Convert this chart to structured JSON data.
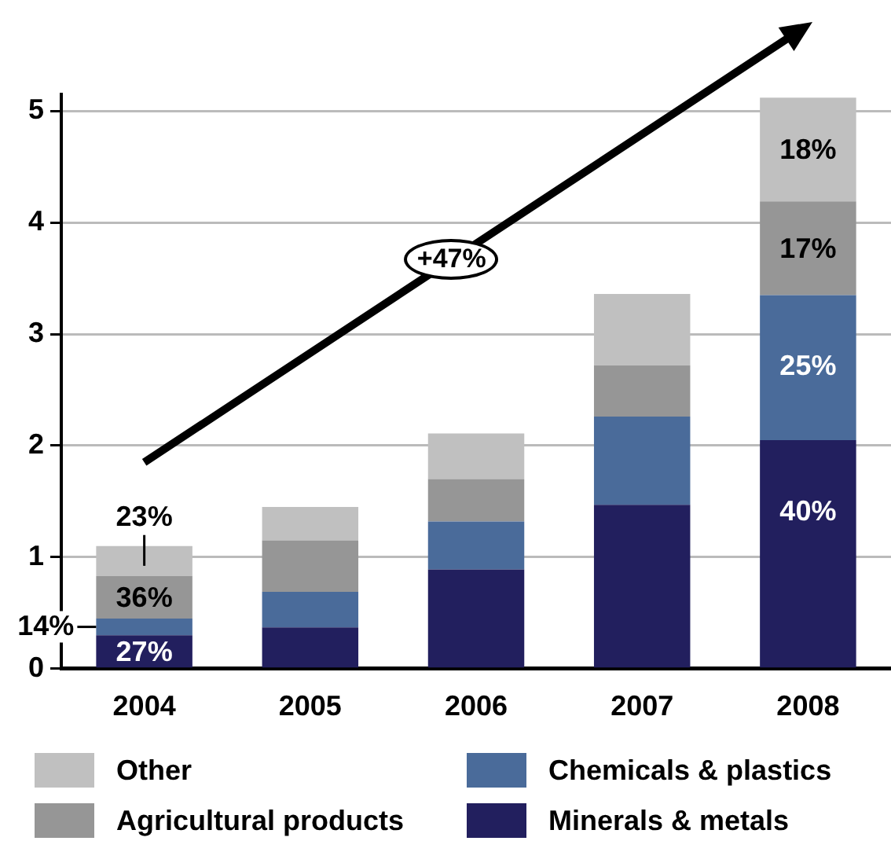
{
  "chart_data": {
    "type": "bar",
    "stacked": true,
    "categories": [
      "2004",
      "2005",
      "2006",
      "2007",
      "2008"
    ],
    "series": [
      {
        "name": "Minerals & metals",
        "color": "#221f5e",
        "values": [
          0.3,
          0.37,
          0.89,
          1.47,
          2.05
        ]
      },
      {
        "name": "Chemicals & plastics",
        "color": "#4a6b9a",
        "values": [
          0.15,
          0.32,
          0.43,
          0.79,
          1.3
        ]
      },
      {
        "name": "Agricultural products",
        "color": "#969696",
        "values": [
          0.38,
          0.46,
          0.38,
          0.46,
          0.84
        ]
      },
      {
        "name": "Other",
        "color": "#c0c0c0",
        "values": [
          0.27,
          0.3,
          0.41,
          0.64,
          0.93
        ]
      }
    ],
    "ylim": [
      0,
      5.15
    ],
    "yticks": [
      0,
      1,
      2,
      3,
      4,
      5
    ],
    "grid": "y",
    "legend": "bottom",
    "annotations": [
      "+47%",
      {
        "text": "27%",
        "x": "2004",
        "y": 0.3
      },
      {
        "text": "14%",
        "x": "2004",
        "y": 0.45
      },
      {
        "text": "36%",
        "x": "2004",
        "y": 0.83
      },
      {
        "text": "23%",
        "x": "2004",
        "y": 1.1
      },
      {
        "text": "40%",
        "x": "2008",
        "y": 2.05
      },
      {
        "text": "25%",
        "x": "2008",
        "y": 3.35
      },
      {
        "text": "17%",
        "x": "2008",
        "y": 4.19
      },
      {
        "text": "18%",
        "x": "2008",
        "y": 5.12
      }
    ]
  }
}
